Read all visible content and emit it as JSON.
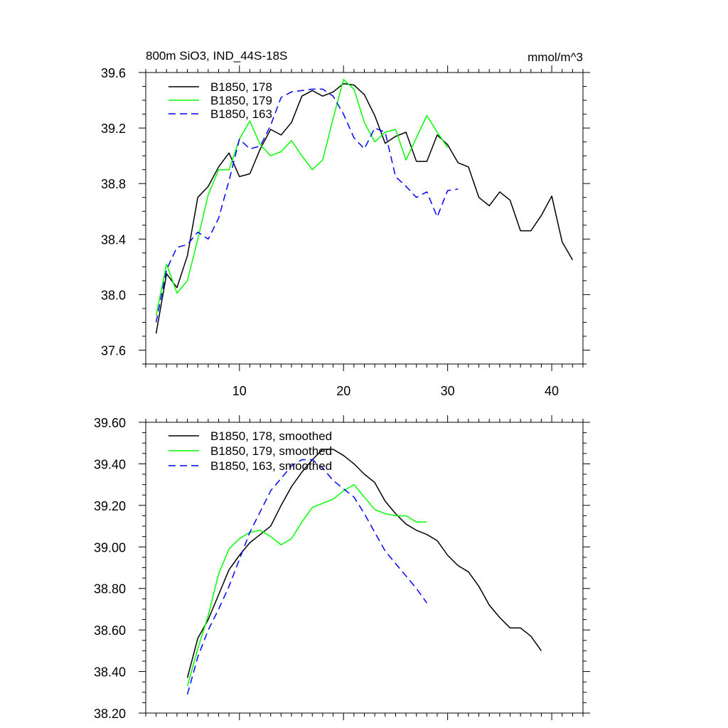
{
  "chart_data": [
    {
      "type": "line",
      "title": "800m SiO3, IND_44S-18S",
      "units": "mmol/m^3",
      "xlim": [
        1,
        43
      ],
      "ylim": [
        37.5,
        39.6
      ],
      "xticks": [
        10,
        20,
        30,
        40
      ],
      "xtick_labels": [
        "10",
        "20",
        "30",
        "40"
      ],
      "yticks": [
        37.6,
        38.0,
        38.4,
        38.8,
        39.2,
        39.6
      ],
      "ytick_labels": [
        "37.6",
        "38.0",
        "38.4",
        "38.8",
        "39.2",
        "39.6"
      ],
      "legend_position": "top-left",
      "series": [
        {
          "name": "B1850, 178",
          "color": "#000000",
          "dash": "solid",
          "x": [
            2,
            3,
            4,
            5,
            6,
            7,
            8,
            9,
            10,
            11,
            12,
            13,
            14,
            15,
            16,
            17,
            18,
            19,
            20,
            21,
            22,
            23,
            24,
            25,
            26,
            27,
            28,
            29,
            30,
            31,
            32,
            33,
            34,
            35,
            36,
            37,
            38,
            39,
            40,
            41,
            42
          ],
          "values": [
            37.72,
            38.15,
            38.05,
            38.28,
            38.7,
            38.78,
            38.92,
            39.02,
            38.85,
            38.87,
            39.05,
            39.19,
            39.15,
            39.24,
            39.43,
            39.47,
            39.43,
            39.46,
            39.52,
            39.51,
            39.44,
            39.29,
            39.09,
            39.14,
            39.17,
            38.96,
            38.96,
            39.15,
            39.08,
            38.95,
            38.92,
            38.7,
            38.64,
            38.74,
            38.68,
            38.46,
            38.46,
            38.57,
            38.71,
            38.38,
            38.25
          ]
        },
        {
          "name": "B1850, 179",
          "color": "#00ff00",
          "dash": "solid",
          "x": [
            2,
            3,
            4,
            5,
            6,
            7,
            8,
            9,
            10,
            11,
            12,
            13,
            14,
            15,
            16,
            17,
            18,
            19,
            20,
            21,
            22,
            23,
            24,
            25,
            26,
            27,
            28,
            29,
            30
          ],
          "values": [
            37.85,
            38.22,
            38.01,
            38.1,
            38.4,
            38.72,
            38.9,
            38.9,
            39.12,
            39.25,
            39.08,
            39.0,
            39.03,
            39.11,
            39.0,
            38.9,
            38.97,
            39.27,
            39.55,
            39.48,
            39.24,
            39.1,
            39.17,
            39.19,
            38.97,
            39.13,
            39.29,
            39.17,
            39.06
          ]
        },
        {
          "name": "B1850, 163",
          "color": "#0000ff",
          "dash": "dashed",
          "x": [
            2,
            3,
            4,
            5,
            6,
            7,
            8,
            9,
            10,
            11,
            12,
            13,
            14,
            15,
            16,
            17,
            18,
            19,
            20,
            21,
            22,
            23,
            24,
            25,
            26,
            27,
            28,
            29,
            30,
            31
          ],
          "values": [
            37.8,
            38.18,
            38.34,
            38.36,
            38.45,
            38.4,
            38.55,
            38.82,
            39.12,
            39.05,
            39.07,
            39.22,
            39.42,
            39.46,
            39.47,
            39.48,
            39.48,
            39.43,
            39.3,
            39.13,
            39.05,
            39.2,
            39.17,
            38.85,
            38.78,
            38.7,
            38.74,
            38.56,
            38.75,
            38.76
          ]
        }
      ]
    },
    {
      "type": "line",
      "title": "",
      "xlim": [
        1,
        43
      ],
      "ylim": [
        38.2,
        39.6
      ],
      "xticks": [
        10,
        20,
        30,
        40
      ],
      "yticks": [
        38.2,
        38.4,
        38.6,
        38.8,
        39.0,
        39.2,
        39.4,
        39.6
      ],
      "ytick_labels": [
        "38.20",
        "38.40",
        "38.60",
        "38.80",
        "39.00",
        "39.20",
        "39.40",
        "39.60"
      ],
      "legend_position": "top-left",
      "series": [
        {
          "name": "B1850, 178, smoothed",
          "color": "#000000",
          "dash": "solid",
          "x": [
            5,
            6,
            7,
            8,
            9,
            10,
            11,
            12,
            13,
            14,
            15,
            16,
            17,
            18,
            19,
            20,
            21,
            22,
            23,
            24,
            25,
            26,
            27,
            28,
            29,
            30,
            31,
            32,
            33,
            34,
            35,
            36,
            37,
            38,
            39
          ],
          "values": [
            38.37,
            38.56,
            38.65,
            38.77,
            38.89,
            38.96,
            39.02,
            39.06,
            39.1,
            39.2,
            39.29,
            39.36,
            39.42,
            39.47,
            39.47,
            39.44,
            39.4,
            39.35,
            39.31,
            39.22,
            39.16,
            39.11,
            39.08,
            39.06,
            39.03,
            38.96,
            38.91,
            38.88,
            38.81,
            38.72,
            38.66,
            38.61,
            38.61,
            38.57,
            38.5
          ]
        },
        {
          "name": "B1850, 179, smoothed",
          "color": "#00ff00",
          "dash": "solid",
          "x": [
            5,
            6,
            7,
            8,
            9,
            10,
            11,
            12,
            13,
            14,
            15,
            16,
            17,
            18,
            19,
            20,
            21,
            22,
            23,
            24,
            25,
            26,
            27,
            28
          ],
          "values": [
            38.33,
            38.51,
            38.67,
            38.87,
            38.99,
            39.04,
            39.07,
            39.08,
            39.05,
            39.01,
            39.04,
            39.12,
            39.19,
            39.21,
            39.23,
            39.27,
            39.3,
            39.24,
            39.18,
            39.16,
            39.15,
            39.15,
            39.12,
            39.12
          ]
        },
        {
          "name": "B1850, 163, smoothed",
          "color": "#0000ff",
          "dash": "dashed",
          "x": [
            5,
            6,
            7,
            8,
            9,
            10,
            11,
            12,
            13,
            14,
            15,
            16,
            17,
            18,
            19,
            20,
            21,
            22,
            23,
            24,
            25,
            26,
            27,
            28
          ],
          "values": [
            38.29,
            38.47,
            38.6,
            38.7,
            38.81,
            38.94,
            39.07,
            39.17,
            39.27,
            39.33,
            39.39,
            39.42,
            39.42,
            39.38,
            39.32,
            39.28,
            39.24,
            39.16,
            39.07,
            38.98,
            38.92,
            38.86,
            38.8,
            38.73
          ]
        }
      ]
    }
  ]
}
